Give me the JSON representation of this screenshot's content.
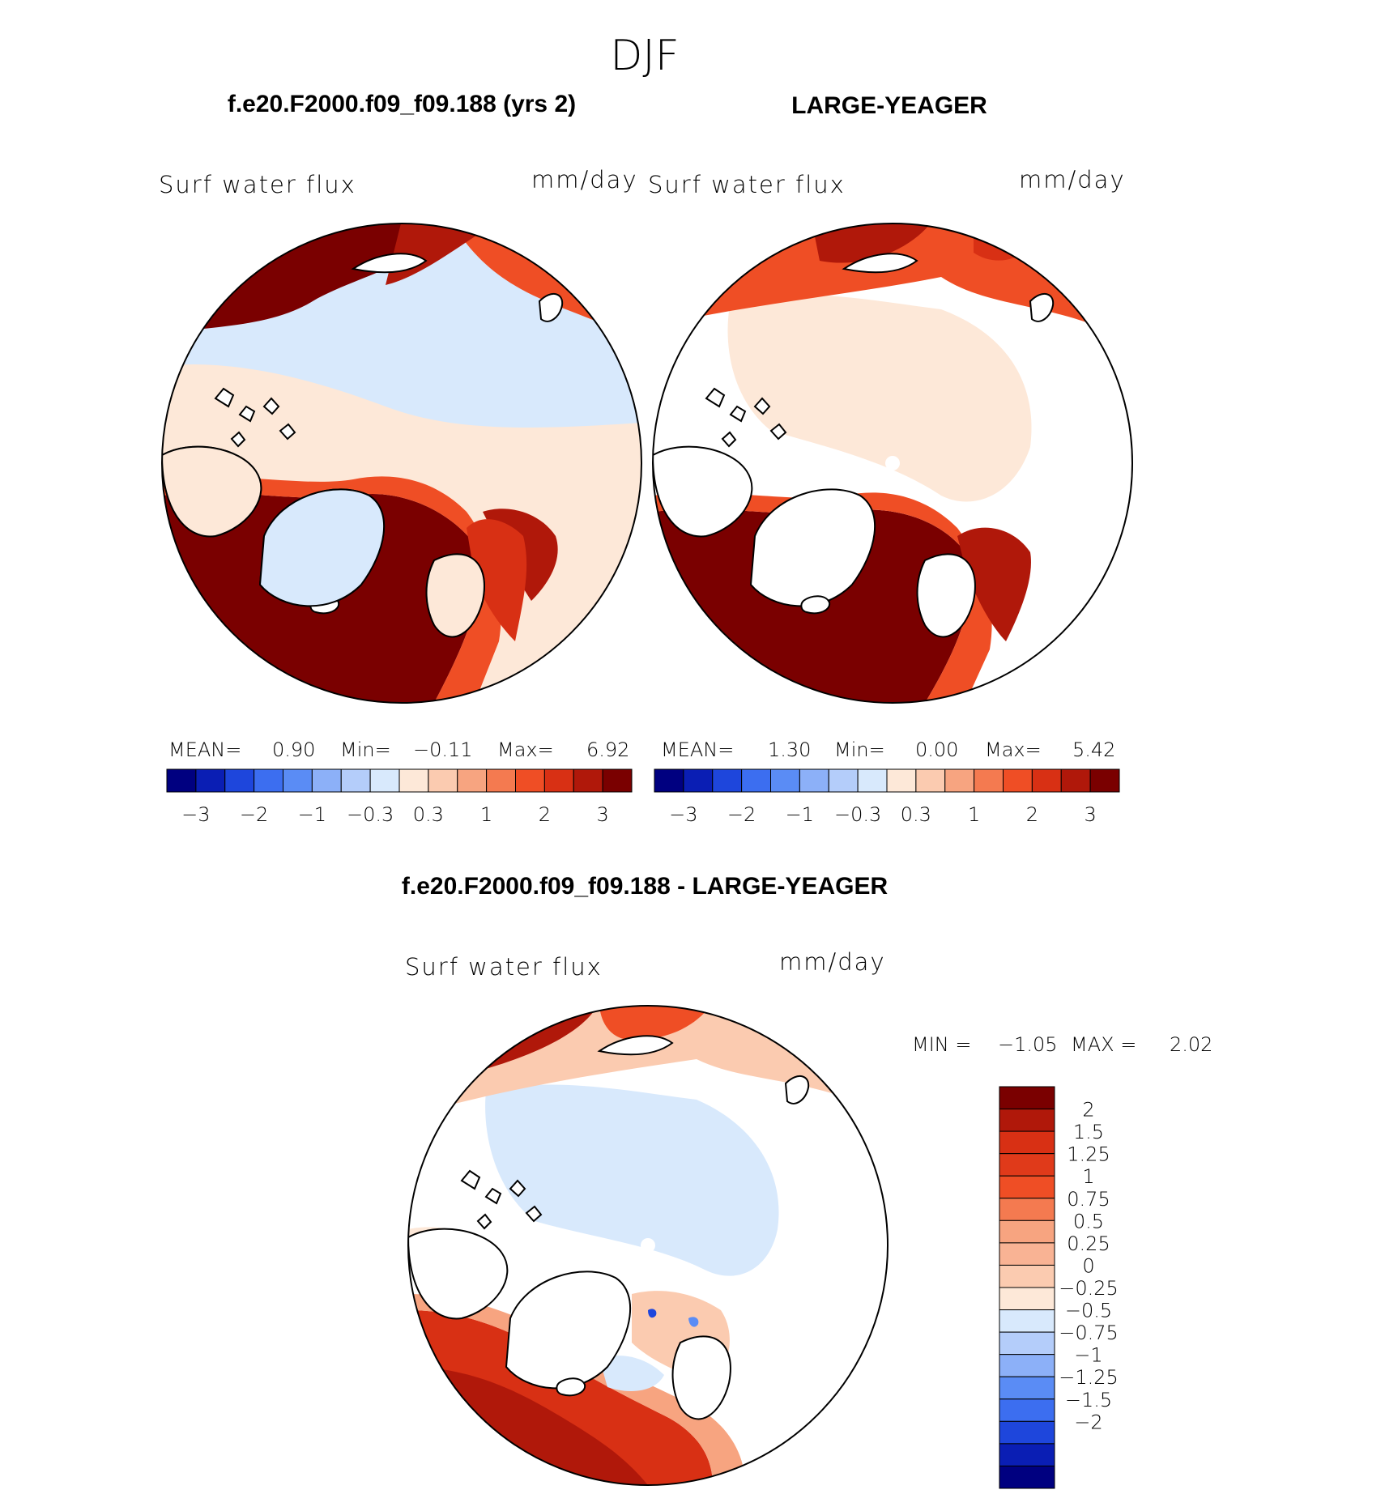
{
  "season": "DJF",
  "colors": {
    "seq16": [
      "#000080",
      "#0a1eb4",
      "#1e46dc",
      "#3c6ef0",
      "#5a8cf5",
      "#8cb0f8",
      "#b4cdfa",
      "#d8e9fc",
      "#fde8d8",
      "#fbcbb0",
      "#f7a480",
      "#f47a50",
      "#ef4e25",
      "#d83014",
      "#b0180a",
      "#7a0000"
    ],
    "diff18": [
      "#000080",
      "#0a1eb4",
      "#1e46dc",
      "#3c6ef0",
      "#5a8cf5",
      "#8cb0f8",
      "#b4cdfa",
      "#d8e9fc",
      "#fde8d8",
      "#fbcbb0",
      "#f9b394",
      "#f7a480",
      "#f47a50",
      "#ef4e25",
      "#e03a1a",
      "#d83014",
      "#b0180a",
      "#7a0000"
    ],
    "land": "#ffffff",
    "coast": "#000000"
  },
  "panels": [
    {
      "title": "f.e20.F2000.f09_f09.188 (yrs 2)",
      "variable": "Surf water flux",
      "units": "mm/day",
      "stats": {
        "mean_label": "MEAN=",
        "mean": "0.90",
        "min_label": "Min=",
        "min": "−0.11",
        "max_label": "Max=",
        "max": "6.92"
      }
    },
    {
      "title": "LARGE-YEAGER",
      "variable": "Surf water flux",
      "units": "mm/day",
      "stats": {
        "mean_label": "MEAN=",
        "mean": "1.30",
        "min_label": "Min=",
        "min": "0.00",
        "max_label": "Max=",
        "max": "5.42"
      }
    }
  ],
  "diff_panel": {
    "title": "f.e20.F2000.f09_f09.188 - LARGE-YEAGER",
    "variable": "Surf water flux",
    "units": "mm/day",
    "min_label": "MIN =",
    "min": "−1.05",
    "max_label": "MAX =",
    "max": "2.02"
  },
  "chart_data": [
    {
      "type": "heatmap",
      "projection": "north-polar-stereographic",
      "title": "f.e20.F2000.f09_f09.188 (yrs 2)",
      "variable": "Surf water flux",
      "units": "mm/day",
      "mean": 0.9,
      "min": -0.11,
      "max": 6.92,
      "colorbar_ticks": [
        "−3",
        "−2",
        "−1",
        "−0.3",
        "0.3",
        "1",
        "2",
        "3"
      ]
    },
    {
      "type": "heatmap",
      "projection": "north-polar-stereographic",
      "title": "LARGE-YEAGER",
      "variable": "Surf water flux",
      "units": "mm/day",
      "mean": 1.3,
      "min": 0.0,
      "max": 5.42,
      "colorbar_ticks": [
        "−3",
        "−2",
        "−1",
        "−0.3",
        "0.3",
        "1",
        "2",
        "3"
      ]
    },
    {
      "type": "heatmap",
      "projection": "north-polar-stereographic",
      "title": "f.e20.F2000.f09_f09.188 - LARGE-YEAGER",
      "variable": "Surf water flux",
      "units": "mm/day",
      "min": -1.05,
      "max": 2.02,
      "colorbar_ticks": [
        "2",
        "1.5",
        "1.25",
        "1",
        "0.75",
        "0.5",
        "0.25",
        "0",
        "−0.25",
        "−0.5",
        "−0.75",
        "−1",
        "−1.25",
        "−1.5",
        "−2"
      ]
    }
  ]
}
